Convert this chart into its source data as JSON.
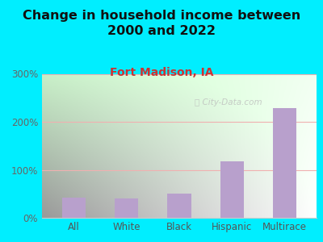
{
  "title": "Change in household income between\n2000 and 2022",
  "subtitle": "Fort Madison, IA",
  "categories": [
    "All",
    "White",
    "Black",
    "Hispanic",
    "Multirace"
  ],
  "values": [
    42,
    40,
    50,
    118,
    228
  ],
  "bar_color": "#b8a0cc",
  "title_fontsize": 11.5,
  "subtitle_fontsize": 10,
  "subtitle_color": "#cc3333",
  "outer_bg": "#00eeff",
  "plot_bg_top_left": "#c8f0c8",
  "plot_bg_bottom_right": "#f8fff8",
  "plot_bg_white": "#ffffff",
  "ylim": [
    0,
    300
  ],
  "yticks": [
    0,
    100,
    200,
    300
  ],
  "ytick_labels": [
    "0%",
    "100%",
    "200%",
    "300%"
  ],
  "watermark": "ⓘ City-Data.com",
  "grid_color": "#f0b0b0",
  "tick_color": "#888888",
  "axis_color": "#cccccc"
}
